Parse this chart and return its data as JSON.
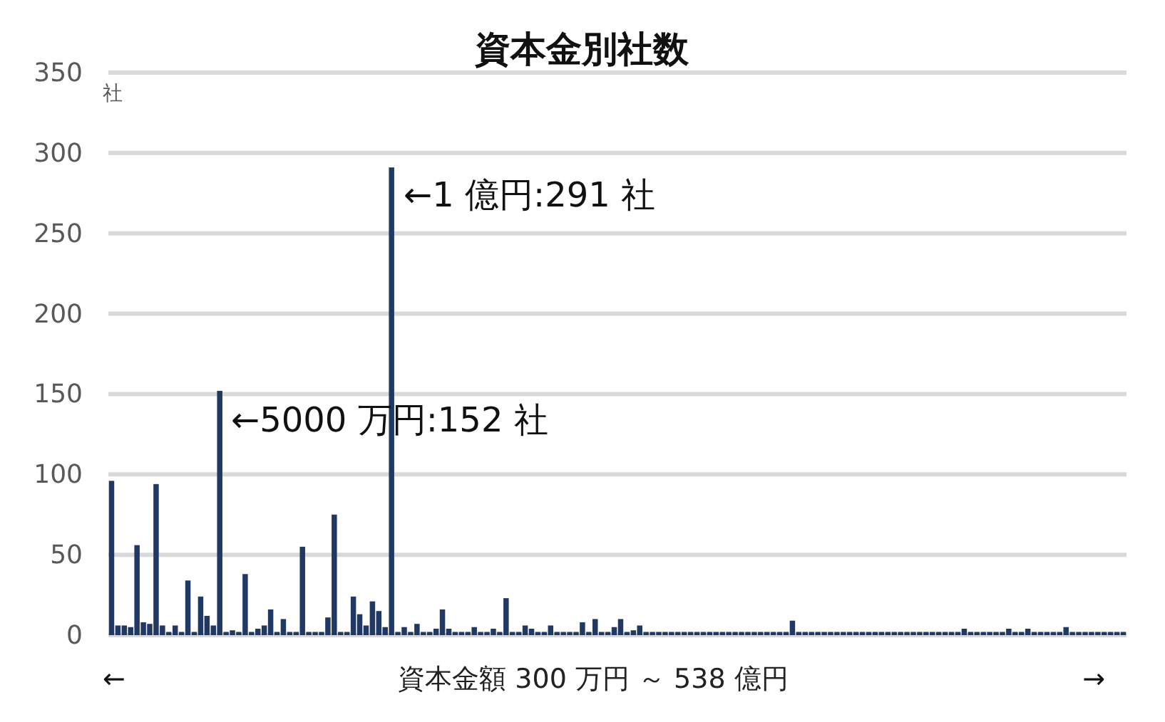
{
  "chart_data": {
    "type": "bar",
    "title": "資本金別社数",
    "ylabel": "社",
    "xlabel": "資本金額 300 万円 ～ 538 億円",
    "categories": [
      null,
      null,
      null,
      null,
      null,
      null,
      null,
      null,
      null,
      null,
      null,
      null,
      null,
      null,
      null,
      null,
      null,
      null,
      null,
      null,
      null,
      null,
      null,
      null,
      null,
      null,
      null,
      null,
      null,
      null,
      null,
      null,
      null,
      null,
      null,
      null,
      null,
      null,
      null,
      null,
      null,
      null,
      null,
      null,
      null,
      null,
      null,
      null,
      null,
      null,
      null,
      null,
      null,
      null,
      null,
      null,
      null,
      null,
      null,
      null,
      null,
      null,
      null,
      null,
      null,
      null,
      null,
      null,
      null,
      null,
      null,
      null,
      null,
      null,
      null,
      null,
      null,
      null,
      null,
      null,
      null,
      null,
      null,
      null,
      null,
      null,
      null,
      null,
      null,
      null,
      null,
      null,
      null,
      null,
      null,
      null,
      null,
      null,
      null,
      null,
      null,
      null,
      null,
      null,
      null,
      null,
      null,
      null,
      null,
      null,
      null,
      null,
      null,
      null,
      null,
      null,
      null,
      null,
      null,
      null,
      null,
      null,
      null,
      null,
      null,
      null,
      null,
      null,
      null,
      null,
      null,
      null,
      null,
      null,
      null,
      null,
      null,
      null,
      null,
      null,
      null,
      null,
      null,
      null,
      null,
      null,
      null,
      null,
      null,
      null,
      null,
      null,
      null,
      null,
      null,
      null,
      null,
      null,
      null,
      null
    ],
    "values": [
      96,
      6,
      6,
      5,
      56,
      8,
      7,
      94,
      6,
      2,
      6,
      2,
      34,
      2,
      24,
      12,
      6,
      152,
      2,
      3,
      2,
      38,
      2,
      4,
      6,
      16,
      2,
      10,
      2,
      2,
      55,
      2,
      2,
      2,
      11,
      75,
      2,
      2,
      24,
      13,
      6,
      21,
      15,
      5,
      291,
      2,
      5,
      2,
      7,
      2,
      2,
      4,
      16,
      4,
      2,
      2,
      2,
      5,
      2,
      2,
      4,
      2,
      23,
      2,
      2,
      6,
      4,
      2,
      2,
      6,
      2,
      2,
      2,
      2,
      8,
      2,
      10,
      2,
      2,
      5,
      10,
      2,
      3,
      6,
      2,
      2,
      2,
      2,
      2,
      2,
      2,
      2,
      2,
      2,
      2,
      2,
      2,
      2,
      2,
      2,
      2,
      2,
      2,
      2,
      2,
      2,
      2,
      9,
      2,
      2,
      2,
      2,
      2,
      2,
      2,
      2,
      2,
      2,
      2,
      2,
      2,
      2,
      2,
      2,
      2,
      2,
      2,
      2,
      2,
      2,
      2,
      2,
      2,
      2,
      4,
      2,
      2,
      2,
      2,
      2,
      2,
      4,
      2,
      2,
      4,
      2,
      2,
      2,
      2,
      2,
      5,
      2,
      2,
      2,
      2,
      2,
      2,
      2,
      2,
      2
    ],
    "color": "#203864",
    "ylim": [
      0,
      350
    ],
    "yticks": [
      0,
      50,
      100,
      150,
      200,
      250,
      300,
      350
    ],
    "grid": "y",
    "annotations": [
      "←",
      "→",
      "←5000 万円:152 社",
      "←1 億円:291 社"
    ]
  }
}
